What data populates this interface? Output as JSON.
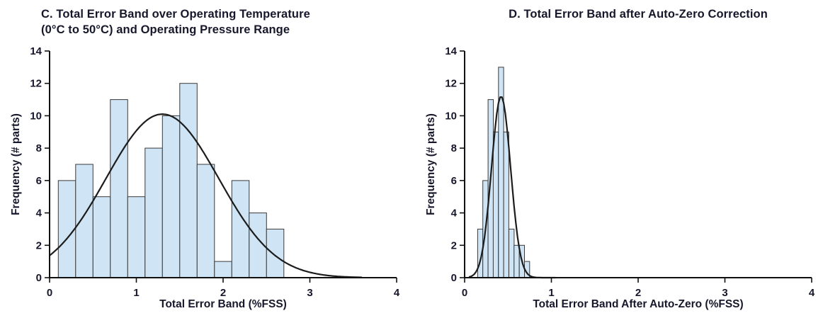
{
  "figure": {
    "background": "#ffffff",
    "text_color": "#17172b"
  },
  "chart_data": [
    {
      "type": "bar",
      "subtype": "histogram",
      "title": "C. Total Error Band over Operating Temperature (0°C to 50°C) and Operating Pressure Range",
      "title_lines": [
        "C. Total Error Band over Operating Temperature",
        "(0°C to 50°C) and Operating Pressure Range"
      ],
      "xlabel": "Total Error Band (%FSS)",
      "ylabel": "Frequency (# parts)",
      "xlim": [
        0,
        4
      ],
      "ylim": [
        0,
        14
      ],
      "xticks": [
        0,
        1,
        2,
        3,
        4
      ],
      "yticks": [
        0,
        2,
        4,
        6,
        8,
        10,
        12,
        14
      ],
      "bin_start": 0.1,
      "bin_width": 0.2,
      "values": [
        6,
        7,
        5,
        11,
        5,
        8,
        10,
        12,
        7,
        1,
        6,
        4,
        3
      ],
      "fit_curve": {
        "type": "gaussian",
        "mean": 1.3,
        "sigma": 0.65,
        "peak": 10.1,
        "x_range": [
          0,
          3.6
        ]
      },
      "bar_fill": "#cfe4f4",
      "bar_stroke": "#3a3a3a",
      "curve_color": "#1c1c1c",
      "axis_color": "#111111",
      "grid": false,
      "legend": "none"
    },
    {
      "type": "bar",
      "subtype": "histogram",
      "title": "D. Total Error Band after Auto-Zero Correction",
      "title_lines": [
        "D. Total Error Band after Auto-Zero Correction"
      ],
      "xlabel": "Total Error Band After Auto-Zero (%FSS)",
      "ylabel": "Frequency (# parts)",
      "xlim": [
        0,
        4
      ],
      "ylim": [
        0,
        14
      ],
      "xticks": [
        0,
        1,
        2,
        3,
        4
      ],
      "yticks": [
        0,
        2,
        4,
        6,
        8,
        10,
        12,
        14
      ],
      "bin_start": 0.15,
      "bin_width": 0.06,
      "values": [
        3,
        6,
        11,
        9,
        13,
        9,
        3,
        2,
        2,
        1
      ],
      "fit_curve": {
        "type": "gaussian",
        "mean": 0.42,
        "sigma": 0.11,
        "peak": 11.2,
        "x_range": [
          0.05,
          1.05
        ]
      },
      "bar_fill": "#cfe4f4",
      "bar_stroke": "#3a3a3a",
      "curve_color": "#1c1c1c",
      "axis_color": "#111111",
      "grid": false,
      "legend": "none"
    }
  ]
}
